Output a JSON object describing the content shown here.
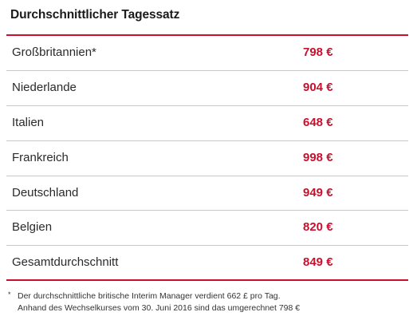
{
  "title": "Durchschnittlicher Tagessatz",
  "rows": [
    {
      "country": "Großbritannien*",
      "rate": "798 €"
    },
    {
      "country": "Niederlande",
      "rate": "904 €"
    },
    {
      "country": "Italien",
      "rate": "648 €"
    },
    {
      "country": "Frankreich",
      "rate": "998 €"
    },
    {
      "country": "Deutschland",
      "rate": "949 €"
    },
    {
      "country": "Belgien",
      "rate": "820 €"
    },
    {
      "country": "Gesamtdurchschnitt",
      "rate": "849 €"
    }
  ],
  "footnote": {
    "marker": "*",
    "line1": "Der durchschnittliche britische Interim Manager verdient 662 £ pro Tag.",
    "line2": "Anhand des Wechselkurses vom 30. Juni 2016 sind das umgerechnet 798 €"
  },
  "colors": {
    "accent": "#c8102e",
    "divider": "#c8c8c8"
  }
}
